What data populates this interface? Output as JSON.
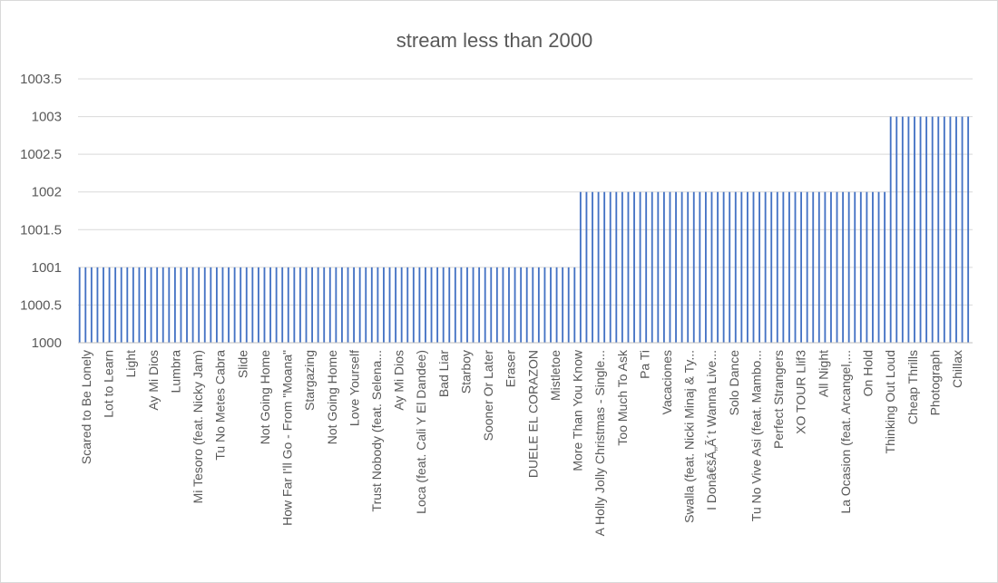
{
  "chart_data": {
    "type": "bar",
    "title": "stream less than 2000",
    "xlabel": "",
    "ylabel": "",
    "ylim": [
      1000,
      1003.5
    ],
    "yticks": [
      "1000",
      "1000.5",
      "1001",
      "1001.5",
      "1002",
      "1002.5",
      "1003",
      "1003.5"
    ],
    "grid": true,
    "legend": "none",
    "bar_count": 150,
    "segments": [
      {
        "count": 84,
        "value": 1001
      },
      {
        "count": 52,
        "value": 1002
      },
      {
        "count": 14,
        "value": 1003
      }
    ],
    "tick_labels": [
      "Scared to Be Lonely",
      "Lot to Learn",
      "Light",
      "Ay Mi Dios",
      "Lumbra",
      "Mi Tesoro (feat. Nicky Jam)",
      "Tu No Metes Cabra",
      "Slide",
      "Not Going Home",
      "How Far I'll Go - From \"Moana\"",
      "Stargazing",
      "Not Going Home",
      "Love Yourself",
      "Trust Nobody (feat. Selena...",
      "Ay Mi Dios",
      "Loca (feat. Cali Y El Dandee)",
      "Bad Liar",
      "Starboy",
      "Sooner Or Later",
      "Eraser",
      "DUELE EL CORAZON",
      "Mistletoe",
      "More Than You Know",
      "A Holly Jolly Christmas - Single...",
      "Too Much To Ask",
      "Pa Ti",
      "Vacaciones",
      "Swalla (feat. Nicki Minaj & Ty...",
      "I Donâ€šÃ„Ã´t Wanna Live...",
      "Solo Dance",
      "Tu No Vive Asi (feat. Mambo...",
      "Perfect Strangers",
      "XO TOUR Llif3",
      "All Night",
      "La Ocasion (feat. Arcangel,...",
      "On Hold",
      "Thinking Out Loud",
      "Cheap Thrills",
      "Photograph",
      "Chillax"
    ],
    "colors": {
      "bar": "#4472c4",
      "grid": "#d9d9d9",
      "text": "#595959",
      "axis": "#bfbfbf"
    }
  }
}
